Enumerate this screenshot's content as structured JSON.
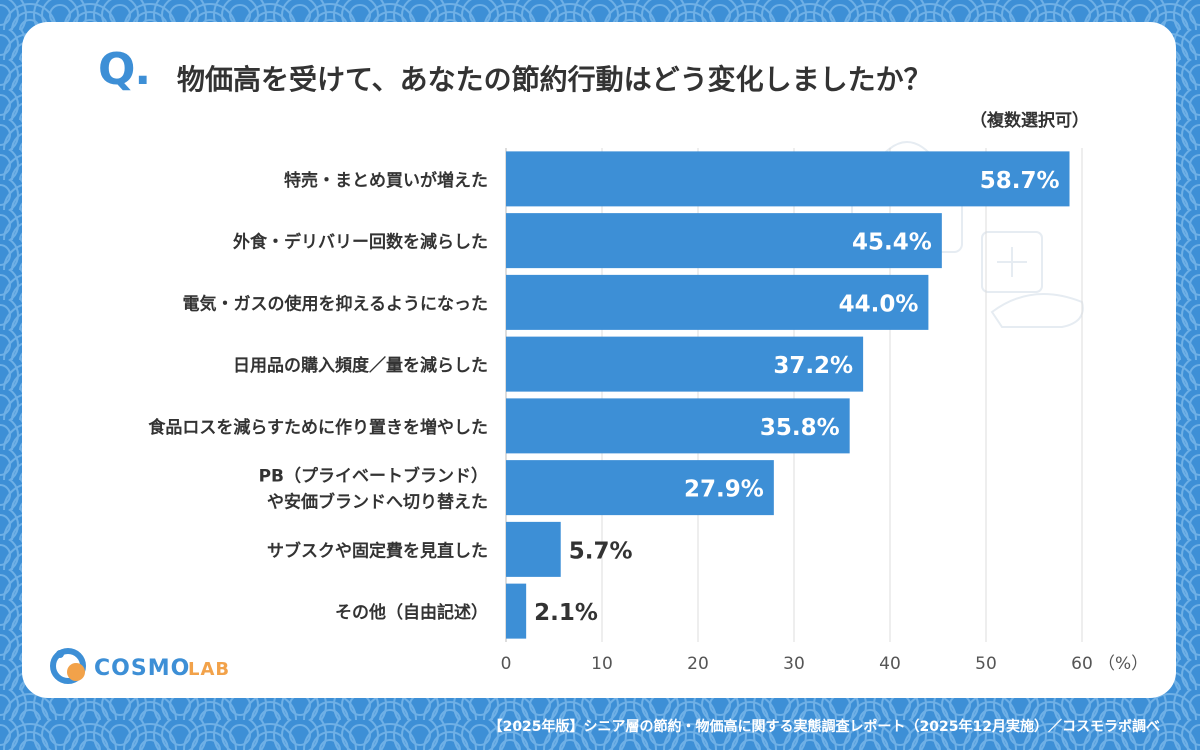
{
  "header": {
    "q_mark": "Q.",
    "title": "物価高を受けて、あなたの節約行動はどう変化しましたか？",
    "subtitle": "（複数選択可）"
  },
  "chart_data": {
    "type": "bar",
    "orientation": "horizontal",
    "categories": [
      "特売・まとめ買いが増えた",
      "外食・デリバリー回数を減らした",
      "電気・ガスの使用を抑えるようになった",
      "日用品の購入頻度／量を減らした",
      "食品ロスを減らすために作り置きを増やした",
      "PB（プライベートブランド）\nや安価ブランドへ切り替えた",
      "サブスクや固定費を見直した",
      "その他（自由記述）"
    ],
    "values": [
      58.7,
      45.4,
      44.0,
      37.2,
      35.8,
      27.9,
      5.7,
      2.1
    ],
    "value_labels": [
      "58.7%",
      "45.4%",
      "44.0%",
      "37.2%",
      "35.8%",
      "27.9%",
      "5.7%",
      "2.1%"
    ],
    "xlim": [
      0,
      60
    ],
    "x_ticks": [
      0,
      10,
      20,
      30,
      40,
      50,
      60
    ],
    "x_unit": "（%）",
    "grid": true,
    "bar_color": "#3d8fd6",
    "grid_color": "#dcdcdc"
  },
  "logo": {
    "text": "COSMO LAB"
  },
  "footer": {
    "text": "【2025年版】シニア層の節約・物価高に関する実態調査レポート（2025年12月実施）／コスモラボ調べ"
  },
  "colors": {
    "background": "#3d8fd6",
    "card": "#ffffff",
    "text": "#333333"
  }
}
